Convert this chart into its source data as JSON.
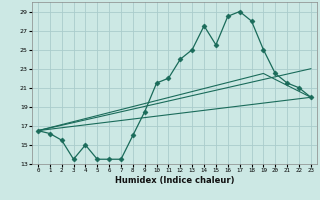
{
  "xlabel": "Humidex (Indice chaleur)",
  "bg_color": "#cce8e4",
  "grid_color": "#aacccc",
  "line_color": "#1a6b5a",
  "xlim": [
    -0.5,
    23.5
  ],
  "ylim": [
    13,
    30
  ],
  "xticks": [
    0,
    1,
    2,
    3,
    4,
    5,
    6,
    7,
    8,
    9,
    10,
    11,
    12,
    13,
    14,
    15,
    16,
    17,
    18,
    19,
    20,
    21,
    22,
    23
  ],
  "yticks": [
    13,
    15,
    17,
    19,
    21,
    23,
    25,
    27,
    29
  ],
  "line1_x": [
    0,
    1,
    2,
    3,
    4,
    5,
    6,
    7,
    8,
    9,
    10,
    11,
    12,
    13,
    14,
    15,
    16,
    17,
    18,
    19,
    20,
    21,
    22,
    23
  ],
  "line1_y": [
    16.5,
    16.2,
    15.5,
    13.5,
    15.0,
    13.5,
    13.5,
    13.5,
    16.0,
    18.5,
    21.5,
    22.0,
    24.0,
    25.0,
    27.5,
    25.5,
    28.5,
    29.0,
    28.0,
    25.0,
    22.5,
    21.5,
    21.0,
    20.0
  ],
  "line2_x": [
    0,
    23
  ],
  "line2_y": [
    16.5,
    20.0
  ],
  "line3_x": [
    0,
    19,
    23
  ],
  "line3_y": [
    16.5,
    22.5,
    20.0
  ],
  "line4_x": [
    0,
    23
  ],
  "line4_y": [
    16.5,
    23.0
  ]
}
